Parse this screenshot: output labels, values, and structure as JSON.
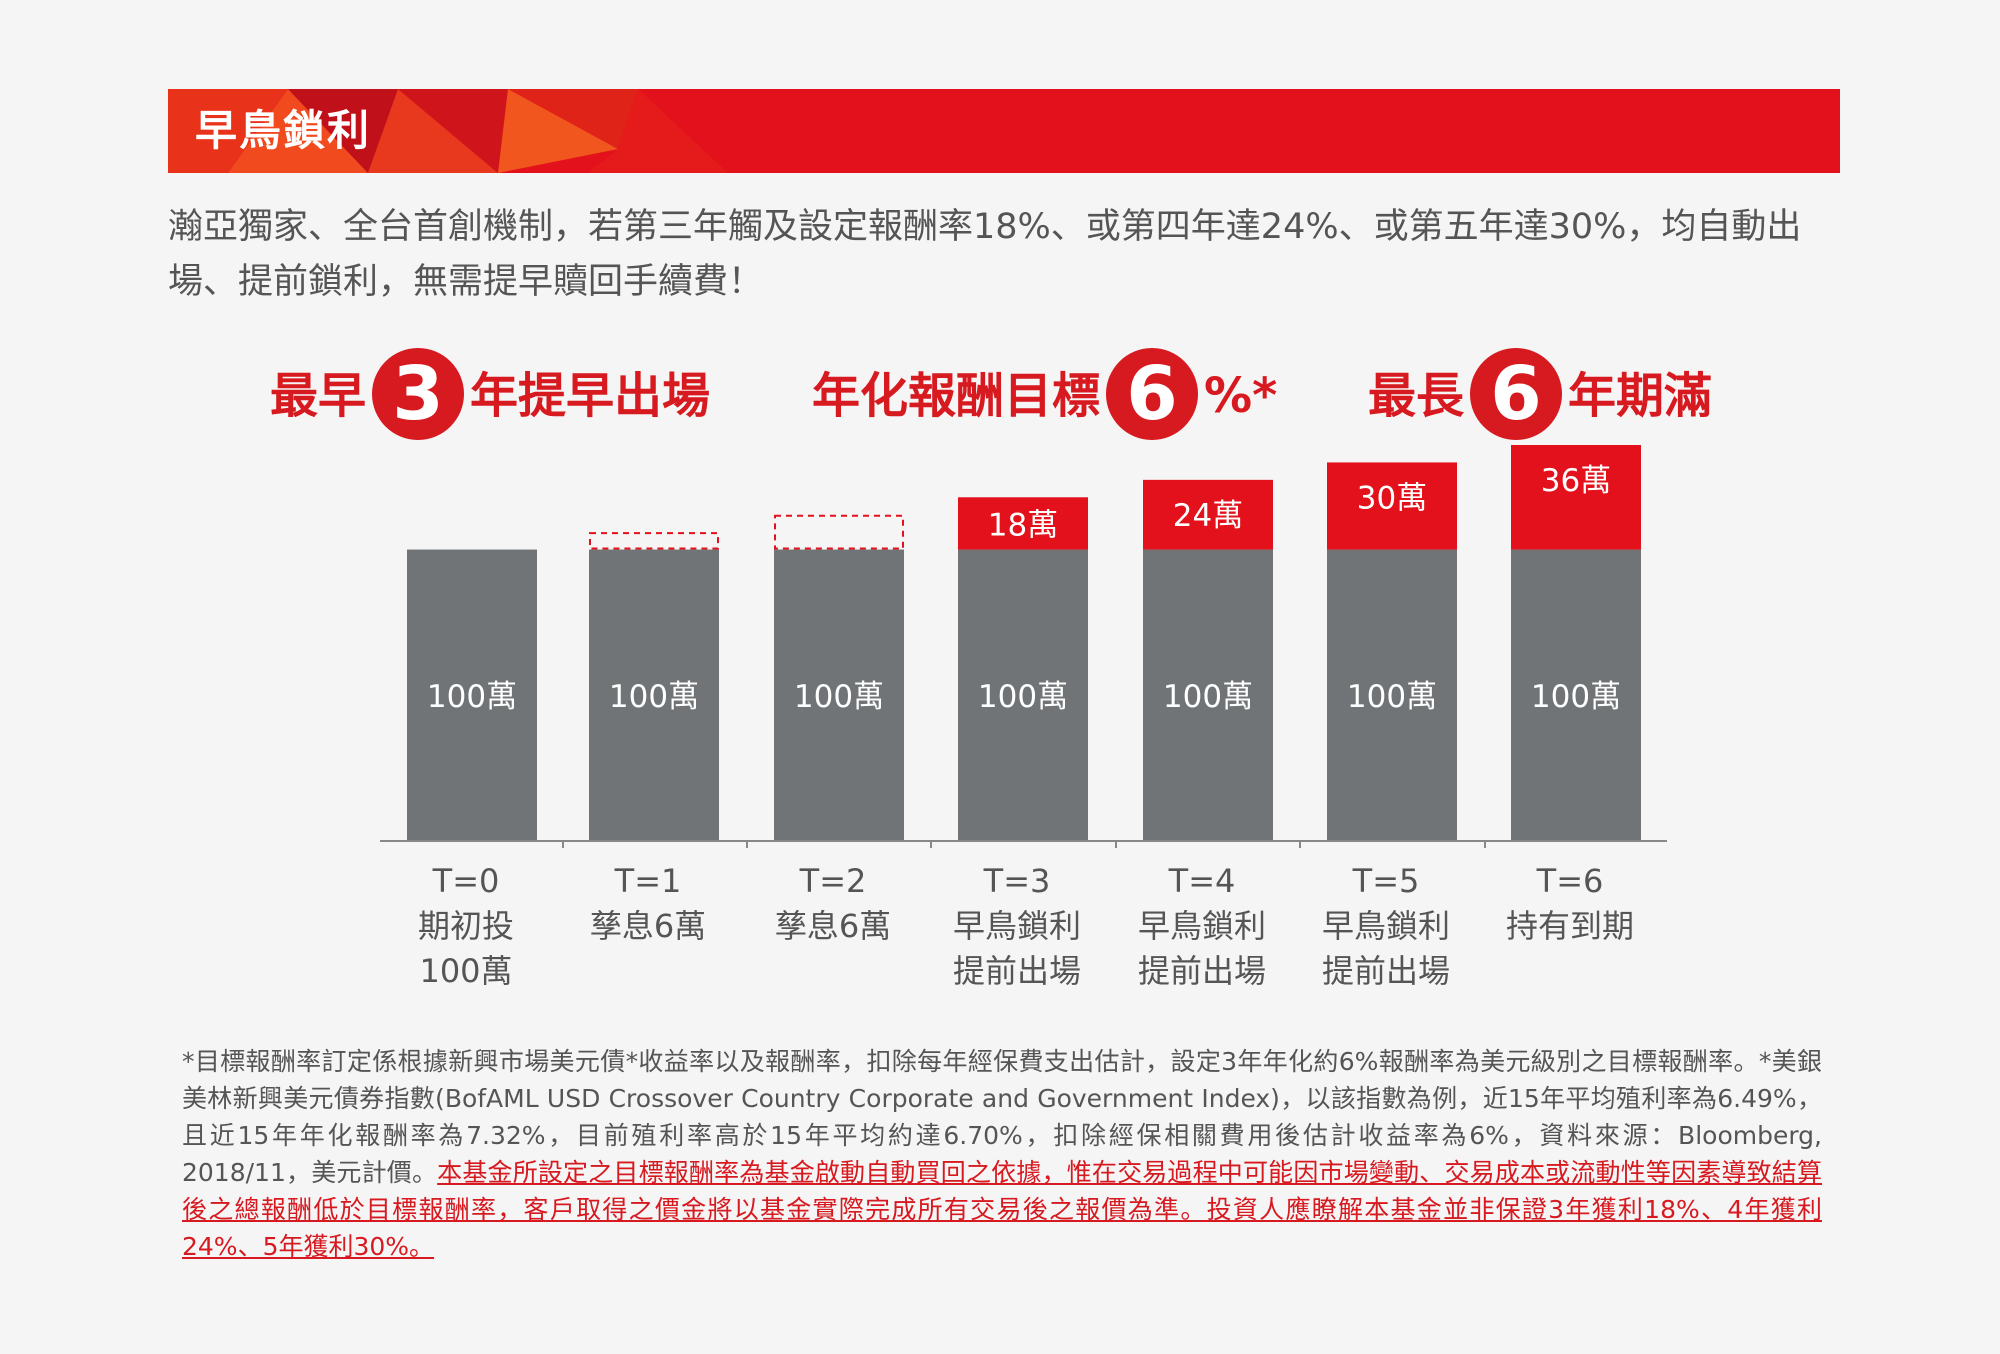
{
  "banner": {
    "title": "早鳥鎖利"
  },
  "intro": "瀚亞獨家、全台首創機制，若第三年觸及設定報酬率18%、或第四年達24%、或第五年達30%，均自動出場、提前鎖利，無需提早贖回手續費！",
  "highlights": [
    {
      "pre": "最早",
      "num": "3",
      "post": "年提早出場"
    },
    {
      "pre": "年化報酬目標",
      "num": "6",
      "post": "%*"
    },
    {
      "pre": "最長",
      "num": "6",
      "post": "年期滿"
    }
  ],
  "colors": {
    "principal": "#707476",
    "return": "#e3111b",
    "accent": "#d71920"
  },
  "chart_data": {
    "type": "bar",
    "stacked": true,
    "categories": [
      [
        "T=0",
        "期初投",
        "100萬"
      ],
      [
        "T=1",
        "孳息6萬"
      ],
      [
        "T=2",
        "孳息6萬"
      ],
      [
        "T=3",
        "早鳥鎖利",
        "提前出場"
      ],
      [
        "T=4",
        "早鳥鎖利",
        "提前出場"
      ],
      [
        "T=5",
        "早鳥鎖利",
        "提前出場"
      ],
      [
        "T=6",
        "持有到期"
      ]
    ],
    "series": [
      {
        "values": [
          100,
          100,
          100,
          100,
          100,
          100,
          100
        ],
        "labels": [
          "100萬",
          "100萬",
          "100萬",
          "100萬",
          "100萬",
          "100萬",
          "100萬"
        ],
        "color": "#707476"
      },
      {
        "values": [
          0,
          6,
          12,
          18,
          24,
          30,
          36
        ],
        "labels": [
          "",
          "",
          "",
          "18萬",
          "24萬",
          "30萬",
          "36萬"
        ],
        "color": "#e3111b",
        "dashed": [
          false,
          true,
          true,
          false,
          false,
          false,
          false
        ]
      }
    ],
    "ylim": [
      0,
      136
    ]
  },
  "footnote": {
    "plain": "*目標報酬率訂定係根據新興市場美元債*收益率以及報酬率，扣除每年經保費支出估計，設定3年年化約6%報酬率為美元級別之目標報酬率。*美銀美林新興美元債券指數(BofAML USD Crossover Country Corporate and Government Index)，以該指數為例，近15年平均殖利率為6.49%，且近15年年化報酬率為7.32%，目前殖利率高於15年平均約達6.70%，扣除經保相關費用後估計收益率為6%，資料來源：Bloomberg, 2018/11，美元計價。",
    "red": "本基金所設定之目標報酬率為基金啟動自動買回之依據，惟在交易過程中可能因市場變動、交易成本或流動性等因素導致結算後之總報酬低於目標報酬率，客戶取得之價金將以基金實際完成所有交易後之報價為準。投資人應瞭解本基金並非保證3年獲利18%、4年獲利24%、5年獲利30%。"
  }
}
